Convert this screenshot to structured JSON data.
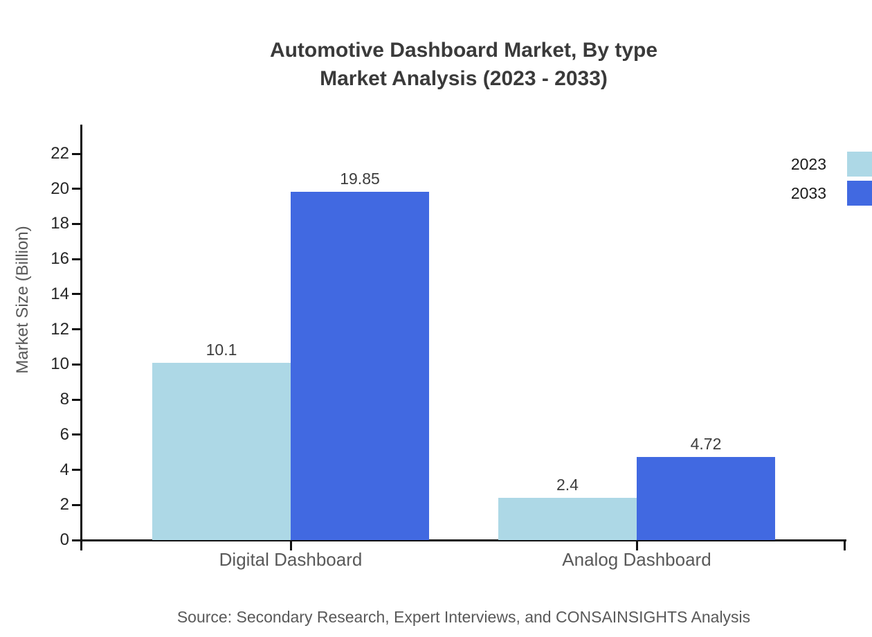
{
  "title": {
    "line1": "Automotive Dashboard Market, By type",
    "line2": "Market Analysis (2023 - 2033)"
  },
  "source": "Source: Secondary Research, Expert Interviews, and CONSAINSIGHTS Analysis",
  "chart_data": {
    "type": "bar",
    "title": "Automotive Dashboard Market, By type Market Analysis (2023 - 2033)",
    "categories": [
      "Digital Dashboard",
      "Analog Dashboard"
    ],
    "series": [
      {
        "name": "2023",
        "color": "#ADD8E6",
        "values": [
          10.1,
          2.4
        ]
      },
      {
        "name": "2033",
        "color": "#4169E1",
        "values": [
          19.85,
          4.72
        ]
      }
    ],
    "xlabel": "",
    "ylabel": "Market Size (Billion)",
    "ylim": [
      0,
      23.6
    ],
    "yticks": [
      0,
      2,
      4,
      6,
      8,
      10,
      12,
      14,
      16,
      18,
      20,
      22
    ],
    "grid": false,
    "legend_position": "top-right",
    "value_labels": true,
    "axis_color": "#111111"
  }
}
